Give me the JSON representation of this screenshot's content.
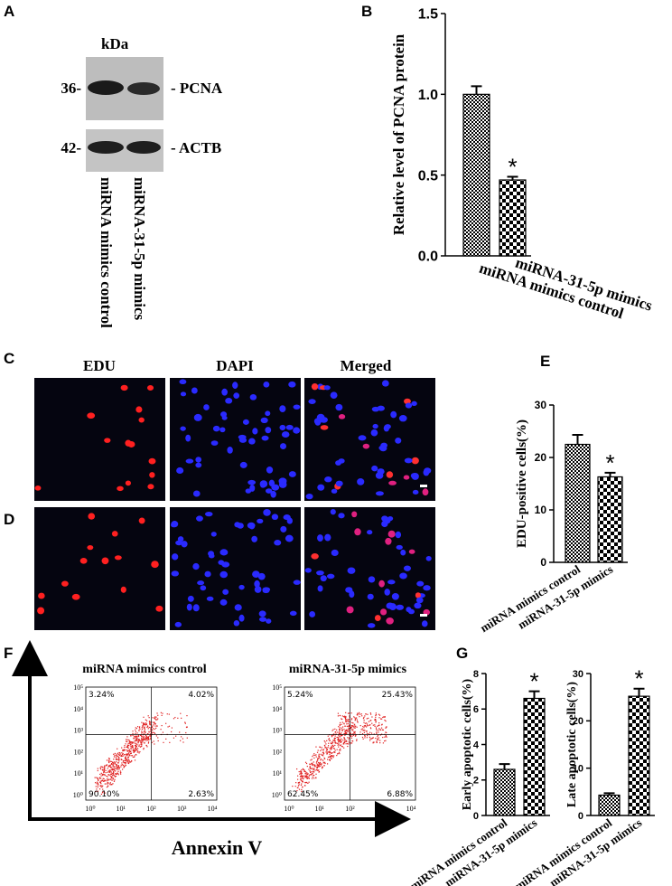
{
  "panels": {
    "a": "A",
    "b": "B",
    "c": "C",
    "d": "D",
    "e": "E",
    "f": "F",
    "g": "G"
  },
  "western_blot": {
    "unit": "kDa",
    "markers": [
      {
        "size": "36-",
        "protein": "- PCNA"
      },
      {
        "size": "42-",
        "protein": "- ACTB"
      }
    ],
    "lanes": [
      "miRNA mimics control",
      "miRNA-31-5p mimics"
    ]
  },
  "microscopy": {
    "columns": [
      "EDU",
      "DAPI",
      "Merged"
    ]
  },
  "flow": {
    "titles": [
      "miRNA mimics control",
      "miRNA-31-5p mimics"
    ],
    "quadrants": [
      [
        "3.24%",
        "4.02%",
        "90.10%",
        "2.63%"
      ],
      [
        "5.24%",
        "25.43%",
        "62.45%",
        "6.88%"
      ]
    ],
    "x_tick_labels": [
      "10⁰",
      "10¹",
      "10²",
      "10³",
      "10⁴"
    ],
    "y_tick_labels": [
      "10⁰",
      "10¹",
      "10²",
      "10³",
      "10⁴",
      "10⁵"
    ],
    "x_axis_label": "Annexin V"
  },
  "chart_data": [
    {
      "type": "bar",
      "ylabel": "Relative level of PCNA protein",
      "categories": [
        "miRNA mimics control",
        "miRNA-31-5p mimics"
      ],
      "values": [
        1.0,
        0.47
      ],
      "errors": [
        0.05,
        0.02
      ],
      "annotation": "*",
      "ylim": [
        0,
        1.5
      ],
      "yticks": [
        {
          "value": 0,
          "label": "0.0"
        },
        {
          "value": 0.5,
          "label": "0.5"
        },
        {
          "value": 1,
          "label": "1.0"
        },
        {
          "value": 1.5,
          "label": "1.5"
        }
      ]
    },
    {
      "type": "bar",
      "ylabel": "EDU-positive cells(%)",
      "categories": [
        "miRNA mimics control",
        "miRNA-31-5p mimics"
      ],
      "values": [
        22.5,
        16.3
      ],
      "errors": [
        1.8,
        0.8
      ],
      "annotation": "*",
      "ylim": [
        0,
        30
      ],
      "yticks": [
        0,
        10,
        20,
        30
      ]
    },
    {
      "type": "bar",
      "ylabel": "Early apoptotic cells(%)",
      "categories": [
        "miRNA mimics control",
        "miRNA-31-5p mimics"
      ],
      "values": [
        2.6,
        6.6
      ],
      "errors": [
        0.3,
        0.4
      ],
      "annotation": "*",
      "ylim": [
        0,
        8
      ],
      "yticks": [
        0,
        2,
        4,
        6,
        8
      ]
    },
    {
      "type": "bar",
      "ylabel": "Late apoptotic cells(%)",
      "categories": [
        "miRNA mimics control",
        "miRNA-31-5p mimics"
      ],
      "values": [
        4.3,
        25.2
      ],
      "errors": [
        0.4,
        1.6
      ],
      "annotation": "*",
      "ylim": [
        0,
        30
      ],
      "yticks": [
        0,
        10,
        20,
        30
      ]
    }
  ]
}
